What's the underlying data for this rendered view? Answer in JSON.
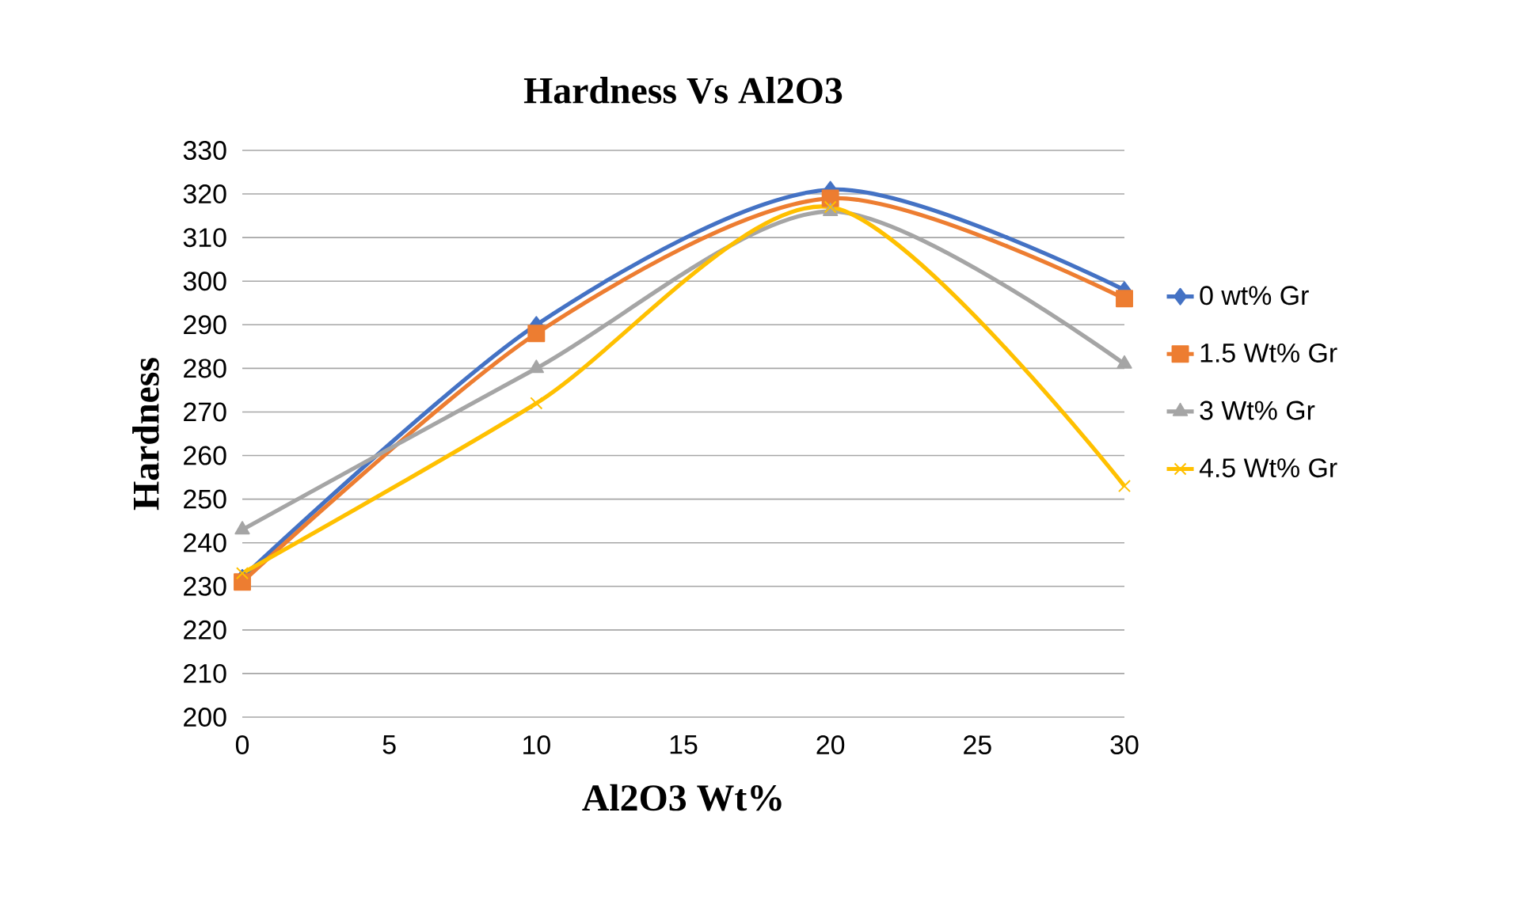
{
  "chart_data": {
    "type": "line",
    "title": "Hardness Vs Al2O3",
    "xlabel": "Al2O3 Wt%",
    "ylabel": "Hardness",
    "x": [
      0,
      10,
      20,
      30
    ],
    "series": [
      {
        "name": "0 wt% Gr",
        "color": "#4472c4",
        "marker": "diamond",
        "values": [
          232,
          290,
          321,
          298
        ]
      },
      {
        "name": "1.5 Wt% Gr",
        "color": "#ed7d31",
        "marker": "square",
        "values": [
          231,
          288,
          319,
          296
        ]
      },
      {
        "name": "3 Wt% Gr",
        "color": "#a5a5a5",
        "marker": "triangle",
        "values": [
          243,
          280,
          316,
          281
        ]
      },
      {
        "name": "4.5 Wt% Gr",
        "color": "#ffc000",
        "marker": "cross",
        "values": [
          233,
          272,
          317,
          253
        ]
      }
    ],
    "xlim": [
      0,
      30
    ],
    "xticks": [
      0,
      5,
      10,
      15,
      20,
      25,
      30
    ],
    "ylim": [
      200,
      330
    ],
    "yticks": [
      200,
      210,
      220,
      230,
      240,
      250,
      260,
      270,
      280,
      290,
      300,
      310,
      320,
      330
    ],
    "grid": "y",
    "legend": "right",
    "line_style": "solid"
  }
}
